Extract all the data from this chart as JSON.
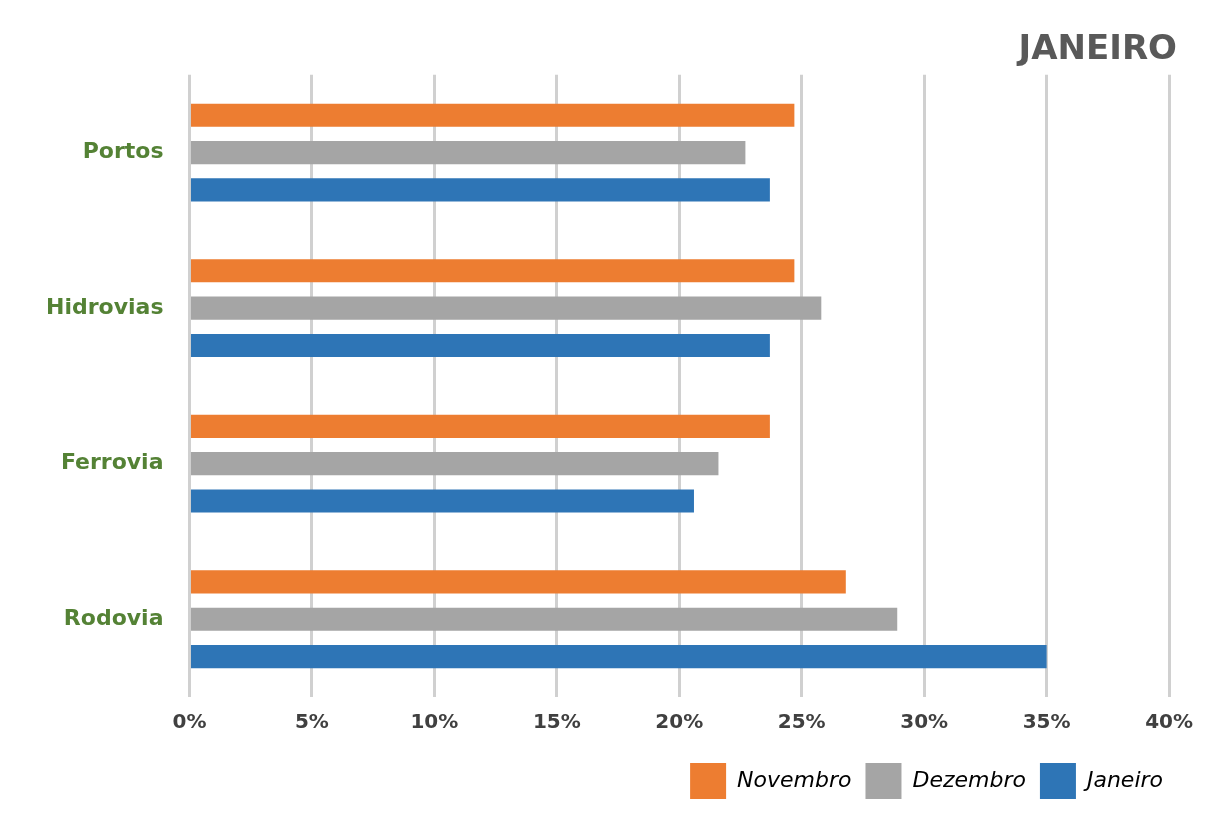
{
  "chart_data": {
    "type": "bar",
    "orientation": "horizontal",
    "title": "JANEIRO",
    "categories": [
      "Portos",
      "Hidrovias",
      "Ferrovia",
      "Rodovia"
    ],
    "series": [
      {
        "name": "Novembro",
        "color": "#ed7d31",
        "values": [
          24.7,
          24.7,
          23.7,
          26.8
        ]
      },
      {
        "name": "Dezembro",
        "color": "#a5a5a5",
        "values": [
          22.7,
          25.8,
          21.6,
          28.9
        ]
      },
      {
        "name": "Janeiro",
        "color": "#2e75b6",
        "values": [
          23.7,
          23.7,
          20.6,
          35.0
        ]
      }
    ],
    "xlim": [
      0,
      40
    ],
    "xticks": [
      {
        "value": 0,
        "label": "0%"
      },
      {
        "value": 5,
        "label": "5%"
      },
      {
        "value": 10,
        "label": "10%"
      },
      {
        "value": 15,
        "label": "15%"
      },
      {
        "value": 20,
        "label": "20%"
      },
      {
        "value": 25,
        "label": "25%"
      },
      {
        "value": 30,
        "label": "30%"
      },
      {
        "value": 35,
        "label": "35%"
      },
      {
        "value": 40,
        "label": "40%"
      }
    ],
    "grid": "x",
    "legend": "bottom right"
  }
}
